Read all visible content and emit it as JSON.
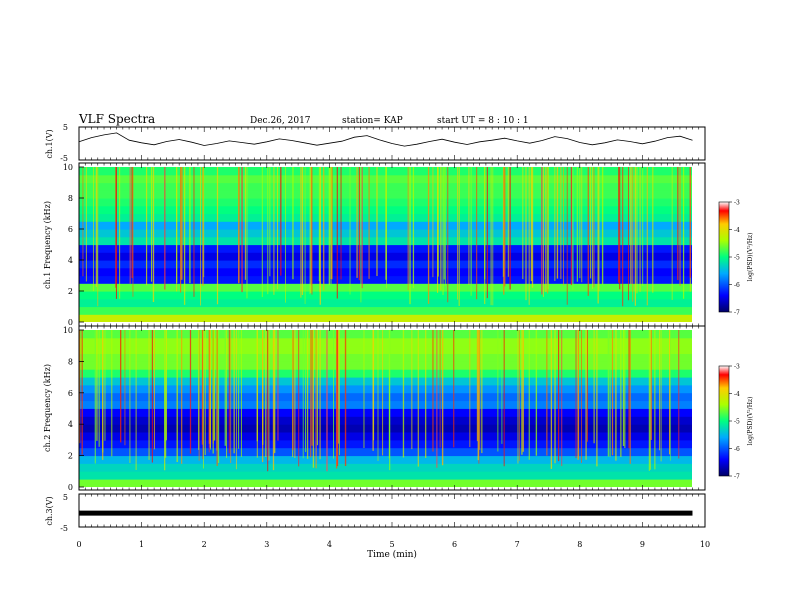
{
  "header": {
    "title": "VLF Spectra",
    "date": "Dec.26, 2017",
    "station": "station= KAP",
    "start": "start  UT =   8  : 10 : 1"
  },
  "chart_data": [
    {
      "type": "line",
      "panel": "ch1-waveform",
      "ylabel": "ch.1(V)",
      "ylim": [
        -5,
        5
      ],
      "yticks": [
        "5",
        "-5"
      ],
      "xlim": [
        0,
        10
      ],
      "series": [
        {
          "values": [
            0.5,
            1.8,
            2.6,
            3.2,
            1.0,
            0.2,
            -0.4,
            0.6,
            1.2,
            0.4,
            -0.6,
            0.0,
            0.8,
            0.3,
            -0.2,
            0.5,
            1.4,
            0.9,
            0.2,
            -0.5,
            0.1,
            0.7,
            1.9,
            2.4,
            1.1,
            0.0,
            -0.8,
            -0.2,
            0.6,
            1.3,
            0.4,
            -0.3,
            0.5,
            1.0,
            1.6,
            0.8,
            0.1,
            0.9,
            2.1,
            1.5,
            0.3,
            -0.4,
            0.2,
            1.1,
            0.6,
            -0.1,
            0.7,
            1.8,
            2.2,
            1.0
          ]
        }
      ]
    },
    {
      "type": "heatmap",
      "panel": "ch1-spectrogram",
      "ylabel": "ch.1 Frequency (kHz)",
      "xlim": [
        0,
        10
      ],
      "ylim": [
        0,
        10
      ],
      "yticks": [
        "0",
        "2",
        "4",
        "6",
        "8",
        "10"
      ],
      "colorbar": {
        "label": "log(PSD)(V²/Hz)",
        "ticks": [
          "-3",
          "-4",
          "-5",
          "-6",
          "-7"
        ],
        "range": [
          -7,
          -3
        ]
      },
      "band_levels": [
        {
          "f": 0.25,
          "v": -4.2
        },
        {
          "f": 0.75,
          "v": -4.8
        },
        {
          "f": 1.25,
          "v": -5.1
        },
        {
          "f": 1.75,
          "v": -5.0
        },
        {
          "f": 2.25,
          "v": -4.7
        },
        {
          "f": 2.75,
          "v": -6.3
        },
        {
          "f": 3.25,
          "v": -6.4
        },
        {
          "f": 3.75,
          "v": -6.2
        },
        {
          "f": 4.25,
          "v": -6.5
        },
        {
          "f": 4.75,
          "v": -6.3
        },
        {
          "f": 5.25,
          "v": -5.2
        },
        {
          "f": 5.75,
          "v": -5.4
        },
        {
          "f": 6.25,
          "v": -5.6
        },
        {
          "f": 6.75,
          "v": -5.1
        },
        {
          "f": 7.25,
          "v": -5.0
        },
        {
          "f": 7.75,
          "v": -4.9
        },
        {
          "f": 8.25,
          "v": -4.8
        },
        {
          "f": 8.75,
          "v": -4.8
        },
        {
          "f": 9.25,
          "v": -4.7
        },
        {
          "f": 9.75,
          "v": -4.9
        }
      ]
    },
    {
      "type": "heatmap",
      "panel": "ch2-spectrogram",
      "ylabel": "ch.2 Frequency (kHz)",
      "xlim": [
        0,
        10
      ],
      "ylim": [
        0,
        10
      ],
      "yticks": [
        "0",
        "2",
        "4",
        "6",
        "8",
        "10"
      ],
      "colorbar": {
        "label": "log(PSD)(V²/Hz)",
        "ticks": [
          "-3",
          "-4",
          "-5",
          "-6",
          "-7"
        ],
        "range": [
          -7,
          -3
        ]
      },
      "band_levels": [
        {
          "f": 0.25,
          "v": -4.6
        },
        {
          "f": 0.75,
          "v": -5.2
        },
        {
          "f": 1.25,
          "v": -5.3
        },
        {
          "f": 1.75,
          "v": -5.5
        },
        {
          "f": 2.25,
          "v": -6.0
        },
        {
          "f": 2.75,
          "v": -6.3
        },
        {
          "f": 3.25,
          "v": -6.5
        },
        {
          "f": 3.75,
          "v": -6.7
        },
        {
          "f": 4.25,
          "v": -6.6
        },
        {
          "f": 4.75,
          "v": -6.4
        },
        {
          "f": 5.25,
          "v": -5.8
        },
        {
          "f": 5.75,
          "v": -5.9
        },
        {
          "f": 6.25,
          "v": -5.7
        },
        {
          "f": 6.75,
          "v": -5.4
        },
        {
          "f": 7.25,
          "v": -4.9
        },
        {
          "f": 7.75,
          "v": -4.6
        },
        {
          "f": 8.25,
          "v": -4.6
        },
        {
          "f": 8.75,
          "v": -4.5
        },
        {
          "f": 9.25,
          "v": -4.5
        },
        {
          "f": 9.75,
          "v": -4.7
        }
      ]
    },
    {
      "type": "line",
      "panel": "ch3-waveform",
      "ylabel": "ch.3(V)",
      "ylim": [
        -5,
        5
      ],
      "yticks": [
        "5",
        "-5"
      ],
      "xlim": [
        0,
        10
      ],
      "series": [
        {
          "values": [
            -0.8,
            -0.8
          ]
        }
      ]
    }
  ],
  "xaxis": {
    "label": "Time  (min)",
    "ticks": [
      "0",
      "1",
      "2",
      "3",
      "4",
      "5",
      "6",
      "7",
      "8",
      "9",
      "10"
    ]
  },
  "colors": {
    "axis": "#000000",
    "background": "#ffffff"
  }
}
